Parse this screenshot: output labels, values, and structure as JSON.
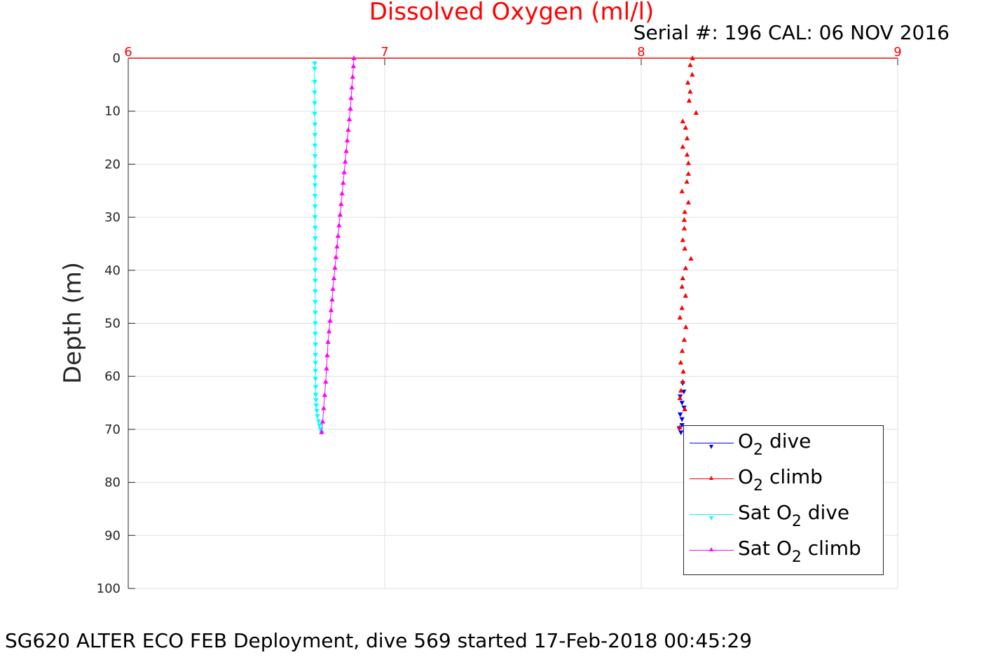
{
  "chart_data": {
    "type": "scatter",
    "title": "Dissolved Oxygen (ml/l)",
    "subtitle": "Serial #: 196  CAL: 06 NOV 2016",
    "xlabel": "",
    "ylabel": "Depth (m)",
    "caption": "SG620 ALTER ECO FEB Deployment, dive 569 started 17-Feb-2018 00:45:29",
    "xlim": [
      6,
      9
    ],
    "ylim": [
      0,
      100
    ],
    "y_reversed": true,
    "x_axis_position": "top",
    "grid": true,
    "legend_position": "bottom-right",
    "xticks": [
      "6",
      "7",
      "8",
      "9"
    ],
    "yticks": [
      "0",
      "10",
      "20",
      "30",
      "40",
      "50",
      "60",
      "70",
      "80",
      "90",
      "100"
    ],
    "series": [
      {
        "name": "O2 dive",
        "name_main": "O",
        "name_sub": "2",
        "name_after": " dive",
        "name_before": "",
        "color": "#0000ff",
        "marker": "triangle-down",
        "line": false,
        "x": [
          8.162,
          8.166,
          8.152,
          8.159,
          8.167,
          8.152,
          8.159,
          8.159,
          8.148,
          8.155
        ],
        "y": [
          61.3,
          62.9,
          63.8,
          65.0,
          65.9,
          67.2,
          68.1,
          69.2,
          69.8,
          70.6
        ]
      },
      {
        "name": "O2 climb",
        "name_main": "O",
        "name_sub": "2",
        "name_after": " climb",
        "name_before": "",
        "color": "#ff0000",
        "marker": "triangle-up",
        "line": false,
        "x": [
          8.2,
          8.191,
          8.199,
          8.182,
          8.191,
          8.187,
          8.214,
          8.162,
          8.173,
          8.179,
          8.162,
          8.179,
          8.184,
          8.184,
          8.178,
          8.159,
          8.184,
          8.17,
          8.168,
          8.168,
          8.162,
          8.17,
          8.194,
          8.173,
          8.162,
          8.159,
          8.173,
          8.159,
          8.151,
          8.174,
          8.168,
          8.16,
          8.154,
          8.164,
          8.162,
          8.155,
          8.151,
          8.17,
          8.15
        ],
        "y": [
          0.0,
          1.3,
          3.1,
          4.6,
          6.3,
          8.0,
          10.3,
          11.9,
          13.1,
          15.1,
          16.7,
          18.2,
          19.8,
          21.8,
          23.3,
          25.1,
          27.2,
          29.0,
          30.5,
          32.1,
          34.3,
          35.9,
          37.8,
          39.6,
          41.5,
          43.1,
          44.8,
          47.1,
          48.9,
          50.7,
          53.1,
          55.2,
          57.4,
          59.1,
          61.0,
          62.7,
          64.1,
          66.2,
          69.6
        ]
      },
      {
        "name": "Sat O2 dive",
        "name_before": "Sat ",
        "name_main": "O",
        "name_sub": "2",
        "name_after": " dive",
        "color": "#00ffff",
        "marker": "triangle-down",
        "line": true,
        "x": [
          6.727,
          6.727,
          6.727,
          6.727,
          6.727,
          6.727,
          6.728,
          6.728,
          6.728,
          6.728,
          6.728,
          6.728,
          6.728,
          6.728,
          6.728,
          6.728,
          6.729,
          6.729,
          6.729,
          6.729,
          6.729,
          6.729,
          6.729,
          6.729,
          6.729,
          6.729,
          6.729,
          6.73,
          6.73,
          6.73,
          6.73,
          6.73,
          6.731,
          6.731,
          6.732,
          6.733,
          6.735,
          6.738,
          6.742,
          6.746,
          6.75,
          6.754
        ],
        "y": [
          1.0,
          2.0,
          4.5,
          6.5,
          8.5,
          10.5,
          12.5,
          14.5,
          16.5,
          18.5,
          20.5,
          22.5,
          24.0,
          26.0,
          28.0,
          30.0,
          32.0,
          34.0,
          36.0,
          38.0,
          40.0,
          42.0,
          44.0,
          46.0,
          48.0,
          50.0,
          52.0,
          54.0,
          56.0,
          57.5,
          59.0,
          60.5,
          62.0,
          63.5,
          64.5,
          65.5,
          66.5,
          67.5,
          68.5,
          69.3,
          70.0,
          70.6
        ]
      },
      {
        "name": "Sat O2 climb",
        "name_before": "Sat ",
        "name_main": "O",
        "name_sub": "2",
        "name_after": " climb",
        "color": "#ff00ff",
        "marker": "triangle-up",
        "line": true,
        "x": [
          6.88,
          6.878,
          6.875,
          6.872,
          6.869,
          6.866,
          6.862,
          6.858,
          6.854,
          6.85,
          6.846,
          6.842,
          6.838,
          6.834,
          6.83,
          6.826,
          6.822,
          6.818,
          6.814,
          6.81,
          6.806,
          6.802,
          6.798,
          6.795,
          6.791,
          6.787,
          6.783,
          6.779,
          6.776,
          6.773,
          6.77,
          6.766,
          6.762,
          6.758,
          6.754
        ],
        "y": [
          0.0,
          1.5,
          3.5,
          5.5,
          7.5,
          9.5,
          11.5,
          13.5,
          15.5,
          17.5,
          19.5,
          21.5,
          23.5,
          25.5,
          27.5,
          29.5,
          31.5,
          33.5,
          35.5,
          37.5,
          39.5,
          41.5,
          43.5,
          45.5,
          47.5,
          49.5,
          51.5,
          53.5,
          56.0,
          58.5,
          61.0,
          63.5,
          66.0,
          68.5,
          70.5
        ]
      }
    ]
  }
}
